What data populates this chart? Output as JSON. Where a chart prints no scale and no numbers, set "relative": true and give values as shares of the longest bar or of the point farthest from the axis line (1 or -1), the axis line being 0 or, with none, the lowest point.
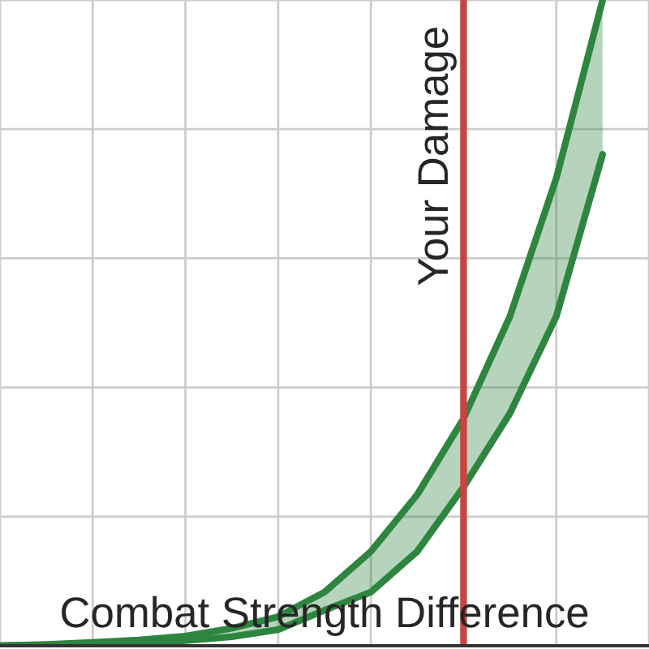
{
  "chart_data": {
    "type": "line",
    "relative": true,
    "xlabel": "Combat Strength Difference",
    "categories": [
      null,
      null,
      null,
      null,
      null,
      null,
      null,
      null,
      null,
      null,
      null,
      null,
      null,
      null,
      null
    ],
    "grid": true,
    "series": [
      {
        "color": "#2e8540",
        "values": [
          0.0,
          0.002,
          0.005,
          0.009,
          0.015,
          0.027,
          0.045,
          0.083,
          0.146,
          0.234,
          0.352,
          0.51,
          0.724,
          1.0,
          null
        ],
        "lower": [
          0.0,
          0.001,
          0.002,
          0.004,
          0.008,
          0.014,
          0.025,
          0.055,
          0.083,
          0.146,
          0.246,
          0.36,
          0.51,
          0.761,
          null
        ],
        "upper": [
          0.0,
          0.002,
          0.005,
          0.009,
          0.015,
          0.027,
          0.045,
          0.083,
          0.146,
          0.234,
          0.352,
          0.51,
          0.724,
          1.0,
          null
        ]
      },
      {
        "color": "#2e8540",
        "values": [
          0.0,
          0.001,
          0.002,
          0.004,
          0.008,
          0.014,
          0.025,
          0.055,
          0.083,
          0.146,
          0.246,
          0.36,
          0.51,
          0.761,
          null
        ]
      }
    ],
    "annotations": [
      "Your Damage"
    ]
  }
}
